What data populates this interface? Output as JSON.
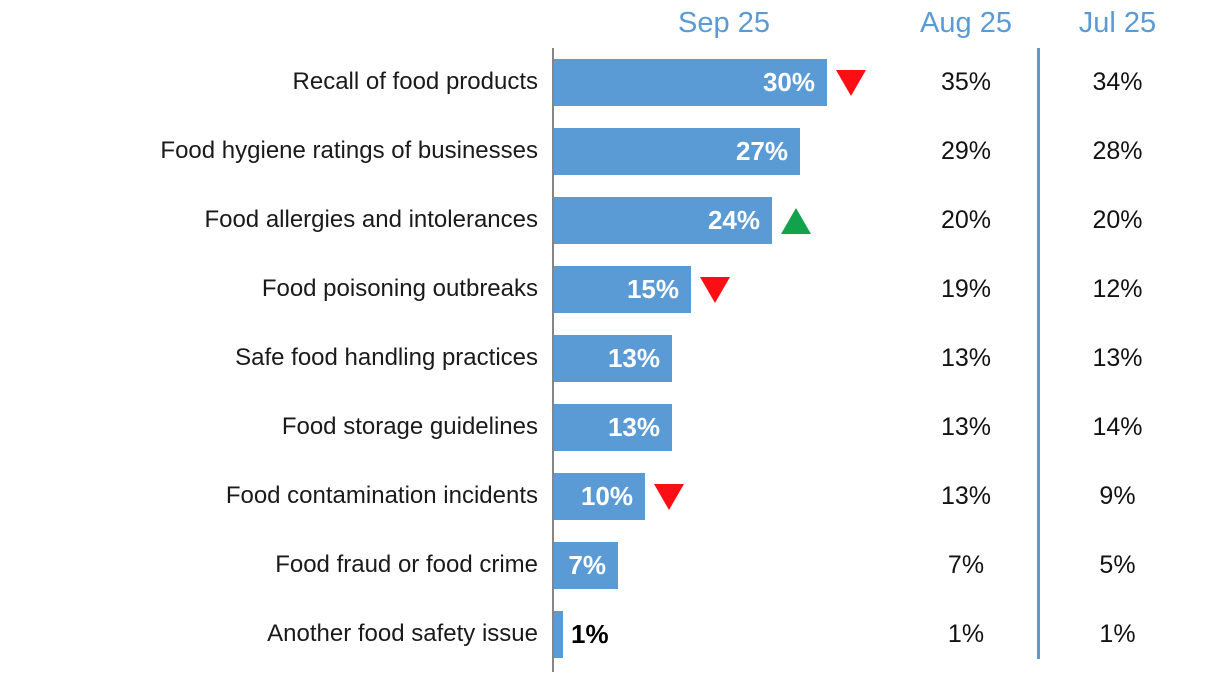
{
  "columns": {
    "current": "Sep 25",
    "prev1": "Aug 25",
    "prev2": "Jul 25"
  },
  "rows": [
    {
      "label": "Recall of food products",
      "sep": "30%",
      "aug": "35%",
      "jul": "34%",
      "trend": "down"
    },
    {
      "label": "Food hygiene ratings of businesses",
      "sep": "27%",
      "aug": "29%",
      "jul": "28%",
      "trend": ""
    },
    {
      "label": "Food allergies and intolerances",
      "sep": "24%",
      "aug": "20%",
      "jul": "20%",
      "trend": "up"
    },
    {
      "label": "Food poisoning outbreaks",
      "sep": "15%",
      "aug": "19%",
      "jul": "12%",
      "trend": "down"
    },
    {
      "label": "Safe food handling practices",
      "sep": "13%",
      "aug": "13%",
      "jul": "13%",
      "trend": ""
    },
    {
      "label": "Food storage guidelines",
      "sep": "13%",
      "aug": "13%",
      "jul": "14%",
      "trend": ""
    },
    {
      "label": "Food contamination incidents",
      "sep": "10%",
      "aug": "13%",
      "jul": "9%",
      "trend": "down"
    },
    {
      "label": "Food fraud or food crime",
      "sep": "7%",
      "aug": "7%",
      "jul": "5%",
      "trend": ""
    },
    {
      "label": "Another food safety issue",
      "sep": "1%",
      "aug": "1%",
      "jul": "1%",
      "trend": ""
    }
  ],
  "chart_data": {
    "type": "bar",
    "orientation": "horizontal",
    "title": "",
    "categories": [
      "Recall of food products",
      "Food hygiene ratings of businesses",
      "Food allergies and intolerances",
      "Food poisoning outbreaks",
      "Safe food handling practices",
      "Food storage guidelines",
      "Food contamination incidents",
      "Food fraud or food crime",
      "Another food safety issue"
    ],
    "series": [
      {
        "name": "Sep 25",
        "values": [
          30,
          27,
          24,
          15,
          13,
          13,
          10,
          7,
          1
        ]
      },
      {
        "name": "Aug 25",
        "values": [
          35,
          29,
          20,
          19,
          13,
          13,
          13,
          7,
          1
        ]
      },
      {
        "name": "Jul 25",
        "values": [
          34,
          28,
          20,
          12,
          13,
          14,
          9,
          5,
          1
        ]
      }
    ],
    "value_suffix": "%",
    "change_markers": [
      "down",
      null,
      "up",
      "down",
      null,
      null,
      "down",
      null,
      null
    ],
    "bar_series_shown_as_bars": "Sep 25",
    "xlim": [
      0,
      37
    ],
    "grid": false,
    "legend_position": "column-headers-top"
  },
  "colors": {
    "bar": "#5B9BD5",
    "header_text": "#5B9BD5",
    "divider_line": "#5B9BD5",
    "axis_line": "#858585",
    "decrease_marker": "#FB0F14",
    "increase_marker": "#12A24B",
    "bar_value_text": "#FFFFFF",
    "body_text": "#1A1A1A"
  }
}
